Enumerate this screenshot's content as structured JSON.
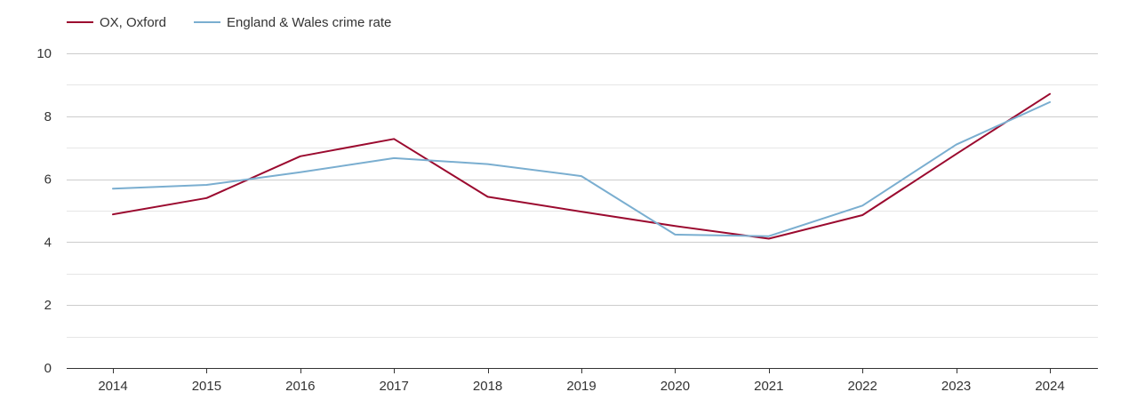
{
  "chart_data": {
    "type": "line",
    "title": "",
    "xlabel": "",
    "ylabel": "",
    "categories": [
      "2014",
      "2015",
      "2016",
      "2017",
      "2018",
      "2019",
      "2020",
      "2021",
      "2022",
      "2023",
      "2024"
    ],
    "ylim": [
      0,
      10
    ],
    "yticks": [
      "0",
      "2",
      "4",
      "6",
      "8",
      "10"
    ],
    "grid": true,
    "legend_position": "top-left",
    "series": [
      {
        "name": "OX, Oxford",
        "color": "#9b0a2f",
        "values": [
          4.88,
          5.4,
          6.73,
          7.28,
          5.44,
          4.97,
          4.51,
          4.11,
          4.86,
          6.8,
          8.71
        ]
      },
      {
        "name": "England & Wales crime rate",
        "color": "#7aaed0",
        "values": [
          5.7,
          5.82,
          6.22,
          6.67,
          6.48,
          6.1,
          4.24,
          4.19,
          5.16,
          7.1,
          8.45
        ]
      }
    ]
  }
}
